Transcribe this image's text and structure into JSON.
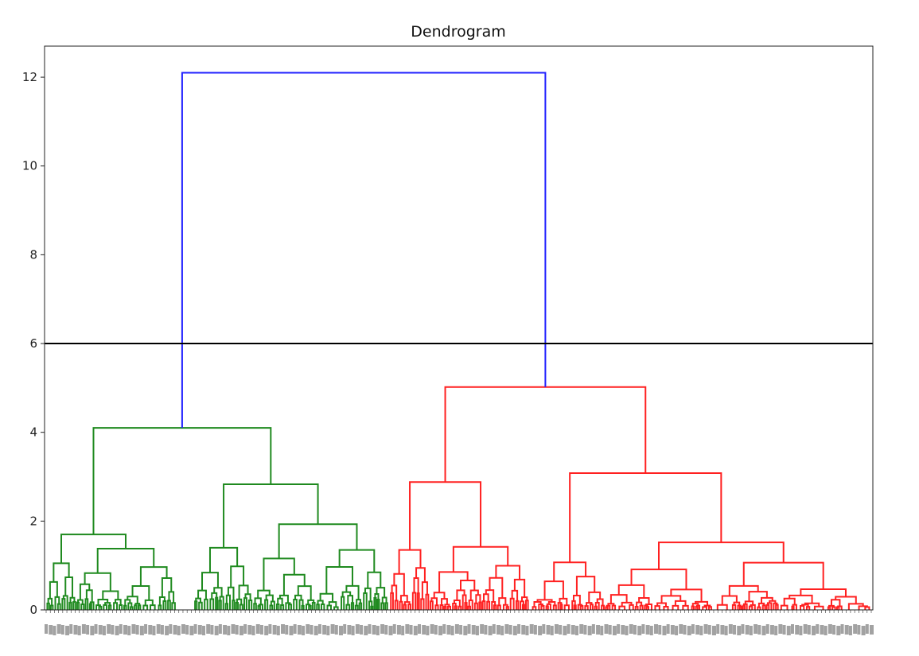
{
  "chart_data": {
    "type": "dendrogram",
    "title": "Dendrogram",
    "xlabel": "",
    "ylabel": "",
    "ylim": [
      0,
      12.7
    ],
    "yticks": [
      0,
      2,
      4,
      6,
      8,
      10,
      12
    ],
    "ytick_labels": [
      "0",
      "2",
      "4",
      "6",
      "8",
      "10",
      "12"
    ],
    "grid": false,
    "legend": "none",
    "threshold_line": {
      "y": 6,
      "color": "#000000"
    },
    "colors": {
      "left_cluster": "#1f8a1f",
      "right_cluster": "#ff2020",
      "root": "#2020ff"
    },
    "n_leaves": 200,
    "main_merges": [
      {
        "name": "root",
        "height": 12.1,
        "color": "blue",
        "children": [
          "left_cluster",
          "right_cluster"
        ]
      },
      {
        "name": "left_cluster",
        "height": 4.1,
        "color": "green",
        "children": [
          "L_a",
          "L_b"
        ]
      },
      {
        "name": "L_a",
        "height": 1.7,
        "color": "green",
        "children": [
          "L_a1",
          "L_a2"
        ]
      },
      {
        "name": "L_a1",
        "height": 1.05,
        "color": "green"
      },
      {
        "name": "L_a2",
        "height": 1.38,
        "color": "green"
      },
      {
        "name": "L_b",
        "height": 2.83,
        "color": "green",
        "children": [
          "L_b1",
          "L_b2"
        ]
      },
      {
        "name": "L_b1",
        "height": 1.4,
        "color": "green"
      },
      {
        "name": "L_b2",
        "height": 1.93,
        "color": "green"
      },
      {
        "name": "right_cluster",
        "height": 5.02,
        "color": "red",
        "children": [
          "R_a",
          "R_b"
        ]
      },
      {
        "name": "R_a",
        "height": 2.88,
        "color": "red",
        "children": [
          "R_a1",
          "R_a2"
        ]
      },
      {
        "name": "R_a1",
        "height": 1.35,
        "color": "red"
      },
      {
        "name": "R_a2",
        "height": 1.42,
        "color": "red"
      },
      {
        "name": "R_b",
        "height": 3.08,
        "color": "red",
        "children": [
          "R_b1",
          "R_b2"
        ]
      },
      {
        "name": "R_b1",
        "height": 1.07,
        "color": "red"
      },
      {
        "name": "R_b2",
        "height": 1.52,
        "color": "red"
      }
    ]
  }
}
